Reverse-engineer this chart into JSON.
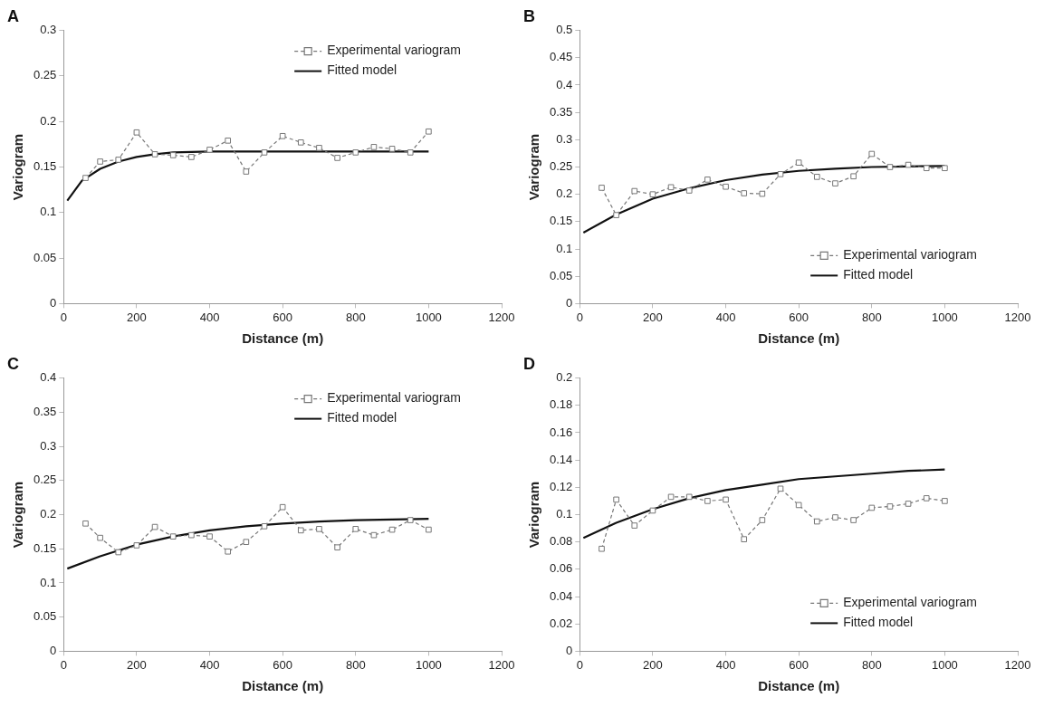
{
  "chart_data": [
    {
      "type": "line",
      "title": "A",
      "xlabel": "Distance (m)",
      "ylabel": "Variogram",
      "xlim": [
        0,
        1200
      ],
      "xticks": [
        0,
        200,
        400,
        600,
        800,
        1000,
        1200
      ],
      "ylim": [
        0,
        0.3
      ],
      "yticks": [
        0,
        0.05,
        0.1,
        0.15,
        0.2,
        0.25,
        0.3
      ],
      "grid": false,
      "legend": "top right",
      "series": [
        {
          "name": "Experimental variogram",
          "color": "#777777",
          "marker": "square",
          "line_style": "dashed",
          "x": [
            60,
            100,
            150,
            200,
            250,
            300,
            350,
            400,
            450,
            500,
            550,
            600,
            650,
            700,
            750,
            800,
            850,
            900,
            950,
            1000
          ],
          "values": [
            0.138,
            0.156,
            0.158,
            0.188,
            0.164,
            0.163,
            0.161,
            0.169,
            0.179,
            0.145,
            0.166,
            0.184,
            0.177,
            0.171,
            0.16,
            0.166,
            0.172,
            0.17,
            0.166,
            0.189
          ]
        },
        {
          "name": "Fitted model",
          "color": "#111111",
          "marker": "none",
          "line_style": "solid",
          "x": [
            10,
            50,
            100,
            150,
            200,
            250,
            300,
            400,
            500,
            700,
            1000
          ],
          "values": [
            0.113,
            0.135,
            0.148,
            0.156,
            0.161,
            0.164,
            0.166,
            0.167,
            0.167,
            0.167,
            0.167
          ]
        }
      ]
    },
    {
      "type": "line",
      "title": "B",
      "xlabel": "Distance (m)",
      "ylabel": "Variogram",
      "xlim": [
        0,
        1200
      ],
      "xticks": [
        0,
        200,
        400,
        600,
        800,
        1000,
        1200
      ],
      "ylim": [
        0,
        0.5
      ],
      "yticks": [
        0,
        0.05,
        0.1,
        0.15,
        0.2,
        0.25,
        0.3,
        0.35,
        0.4,
        0.45,
        0.5
      ],
      "grid": false,
      "legend": "bottom right",
      "series": [
        {
          "name": "Experimental variogram",
          "color": "#777777",
          "marker": "square",
          "line_style": "dashed",
          "x": [
            60,
            100,
            150,
            200,
            250,
            300,
            350,
            400,
            450,
            500,
            550,
            600,
            650,
            700,
            750,
            800,
            850,
            900,
            950,
            1000
          ],
          "values": [
            0.212,
            0.162,
            0.206,
            0.2,
            0.213,
            0.207,
            0.227,
            0.214,
            0.202,
            0.201,
            0.237,
            0.258,
            0.232,
            0.22,
            0.233,
            0.274,
            0.25,
            0.254,
            0.248,
            0.248
          ]
        },
        {
          "name": "Fitted model",
          "color": "#111111",
          "marker": "none",
          "line_style": "solid",
          "x": [
            10,
            100,
            200,
            300,
            400,
            500,
            600,
            700,
            800,
            900,
            1000
          ],
          "values": [
            0.13,
            0.163,
            0.192,
            0.211,
            0.226,
            0.236,
            0.243,
            0.247,
            0.25,
            0.251,
            0.252
          ]
        }
      ]
    },
    {
      "type": "line",
      "title": "C",
      "xlabel": "Distance (m)",
      "ylabel": "Variogram",
      "xlim": [
        0,
        1200
      ],
      "xticks": [
        0,
        200,
        400,
        600,
        800,
        1000,
        1200
      ],
      "ylim": [
        0,
        0.4
      ],
      "yticks": [
        0,
        0.05,
        0.1,
        0.15,
        0.2,
        0.25,
        0.3,
        0.35,
        0.4
      ],
      "grid": false,
      "legend": "top right",
      "series": [
        {
          "name": "Experimental variogram",
          "color": "#777777",
          "marker": "square",
          "line_style": "dashed",
          "x": [
            60,
            100,
            150,
            200,
            250,
            300,
            350,
            400,
            450,
            500,
            550,
            600,
            650,
            700,
            750,
            800,
            850,
            900,
            950,
            1000
          ],
          "values": [
            0.187,
            0.166,
            0.145,
            0.155,
            0.182,
            0.168,
            0.17,
            0.168,
            0.146,
            0.16,
            0.183,
            0.211,
            0.177,
            0.179,
            0.152,
            0.179,
            0.17,
            0.178,
            0.192,
            0.178
          ]
        },
        {
          "name": "Fitted model",
          "color": "#111111",
          "marker": "none",
          "line_style": "solid",
          "x": [
            10,
            100,
            200,
            300,
            400,
            500,
            600,
            700,
            800,
            900,
            1000
          ],
          "values": [
            0.121,
            0.139,
            0.156,
            0.168,
            0.177,
            0.183,
            0.187,
            0.19,
            0.192,
            0.193,
            0.194
          ]
        }
      ]
    },
    {
      "type": "line",
      "title": "D",
      "xlabel": "Distance (m)",
      "ylabel": "Variogram",
      "xlim": [
        0,
        1200
      ],
      "xticks": [
        0,
        200,
        400,
        600,
        800,
        1000,
        1200
      ],
      "ylim": [
        0,
        0.2
      ],
      "yticks": [
        0,
        0.02,
        0.04,
        0.06,
        0.08,
        0.1,
        0.12,
        0.14,
        0.16,
        0.18,
        0.2
      ],
      "grid": false,
      "legend": "bottom right",
      "series": [
        {
          "name": "Experimental variogram",
          "color": "#777777",
          "marker": "square",
          "line_style": "dashed",
          "x": [
            60,
            100,
            150,
            200,
            250,
            300,
            350,
            400,
            450,
            500,
            550,
            600,
            650,
            700,
            750,
            800,
            850,
            900,
            950,
            1000
          ],
          "values": [
            0.075,
            0.111,
            0.092,
            0.103,
            0.113,
            0.113,
            0.11,
            0.111,
            0.082,
            0.096,
            0.119,
            0.107,
            0.095,
            0.098,
            0.096,
            0.105,
            0.106,
            0.108,
            0.112,
            0.11
          ]
        },
        {
          "name": "Fitted model",
          "color": "#111111",
          "marker": "none",
          "line_style": "solid",
          "x": [
            10,
            100,
            200,
            300,
            400,
            500,
            600,
            700,
            800,
            900,
            1000
          ],
          "values": [
            0.083,
            0.094,
            0.104,
            0.112,
            0.118,
            0.122,
            0.126,
            0.128,
            0.13,
            0.132,
            0.133
          ]
        }
      ]
    }
  ]
}
